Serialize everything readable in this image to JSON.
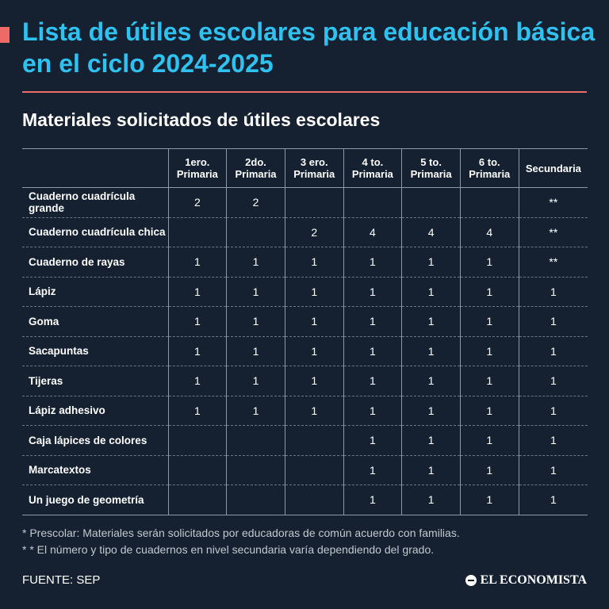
{
  "title": "Lista de útiles escolares para educación básica en el ciclo 2024-2025",
  "subtitle": "Materiales solicitados de útiles escolares",
  "colors": {
    "background": "#152130",
    "title": "#2fc1f0",
    "accent": "#ee6a66"
  },
  "table": {
    "headers": [
      [
        "1ero.",
        "Primaria"
      ],
      [
        "2do.",
        "Primaria"
      ],
      [
        "3 ero.",
        "Primaria"
      ],
      [
        "4 to.",
        "Primaria"
      ],
      [
        "5 to.",
        "Primaria"
      ],
      [
        "6 to.",
        "Primaria"
      ],
      [
        "Secundaria"
      ]
    ],
    "rows": [
      {
        "item": "Cuaderno cuadrícula grande",
        "values": [
          "2",
          "2",
          "",
          "",
          "",
          "",
          "**"
        ]
      },
      {
        "item": "Cuaderno cuadrícula chica",
        "values": [
          "",
          "",
          "2",
          "4",
          "4",
          "4",
          "**"
        ]
      },
      {
        "item": "Cuaderno de rayas",
        "values": [
          "1",
          "1",
          "1",
          "1",
          "1",
          "1",
          "**"
        ]
      },
      {
        "item": "Lápiz",
        "values": [
          "1",
          "1",
          "1",
          "1",
          "1",
          "1",
          "1"
        ]
      },
      {
        "item": "Goma",
        "values": [
          "1",
          "1",
          "1",
          "1",
          "1",
          "1",
          "1"
        ]
      },
      {
        "item": "Sacapuntas",
        "values": [
          "1",
          "1",
          "1",
          "1",
          "1",
          "1",
          "1"
        ]
      },
      {
        "item": "Tijeras",
        "values": [
          "1",
          "1",
          "1",
          "1",
          "1",
          "1",
          "1"
        ]
      },
      {
        "item": "Lápiz adhesivo",
        "values": [
          "1",
          "1",
          "1",
          "1",
          "1",
          "1",
          "1"
        ]
      },
      {
        "item": "Caja lápices de colores",
        "values": [
          "",
          "",
          "",
          "1",
          "1",
          "1",
          "1"
        ]
      },
      {
        "item": "Marcatextos",
        "values": [
          "",
          "",
          "",
          "1",
          "1",
          "1",
          "1"
        ]
      },
      {
        "item": "Un juego de geometría",
        "values": [
          "",
          "",
          "",
          "1",
          "1",
          "1",
          "1"
        ]
      }
    ]
  },
  "footnotes": [
    "* Prescolar: Materiales serán solicitados por educadoras de común acuerdo con familias.",
    "* * El número y tipo de cuadernos en nivel secundaria varía dependiendo del grado."
  ],
  "source": "FUENTE: SEP",
  "brand": {
    "name": "EL ECONOMISTA",
    "icon": "el-economista-logo-icon"
  }
}
